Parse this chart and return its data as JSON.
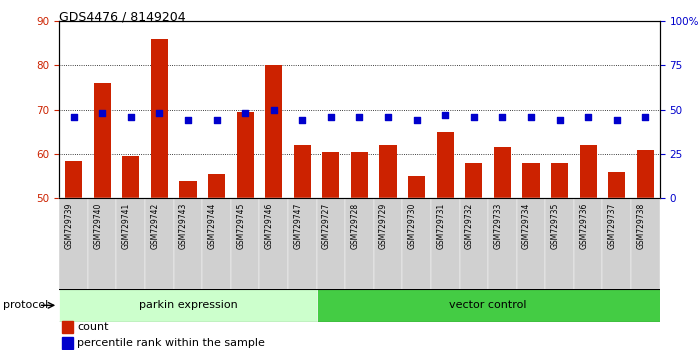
{
  "title": "GDS4476 / 8149204",
  "samples": [
    "GSM729739",
    "GSM729740",
    "GSM729741",
    "GSM729742",
    "GSM729743",
    "GSM729744",
    "GSM729745",
    "GSM729746",
    "GSM729747",
    "GSM729727",
    "GSM729728",
    "GSM729729",
    "GSM729730",
    "GSM729731",
    "GSM729732",
    "GSM729733",
    "GSM729734",
    "GSM729735",
    "GSM729736",
    "GSM729737",
    "GSM729738"
  ],
  "counts": [
    58.5,
    76.0,
    59.5,
    86.0,
    54.0,
    55.5,
    69.5,
    80.0,
    62.0,
    60.5,
    60.5,
    62.0,
    55.0,
    65.0,
    58.0,
    61.5,
    58.0,
    58.0,
    62.0,
    56.0,
    61.0
  ],
  "percentile_pct": [
    46,
    48,
    46,
    48,
    44,
    44,
    48,
    50,
    44,
    46,
    46,
    46,
    44,
    47,
    46,
    46,
    46,
    44,
    46,
    44,
    46
  ],
  "parkin_count": 9,
  "vector_count": 12,
  "ylim_left": [
    50,
    90
  ],
  "ylim_right": [
    0,
    100
  ],
  "yticks_left": [
    50,
    60,
    70,
    80,
    90
  ],
  "yticks_right": [
    0,
    25,
    50,
    75,
    100
  ],
  "ytick_labels_right": [
    "0",
    "25",
    "50",
    "75",
    "100%"
  ],
  "bar_color": "#cc2200",
  "dot_color": "#0000cc",
  "parkin_bg": "#ccffcc",
  "vector_bg": "#44cc44",
  "tick_bg": "#d0d0d0",
  "protocol_label": "protocol",
  "parkin_label": "parkin expression",
  "vector_label": "vector control",
  "legend_count": "count",
  "legend_pct": "percentile rank within the sample"
}
